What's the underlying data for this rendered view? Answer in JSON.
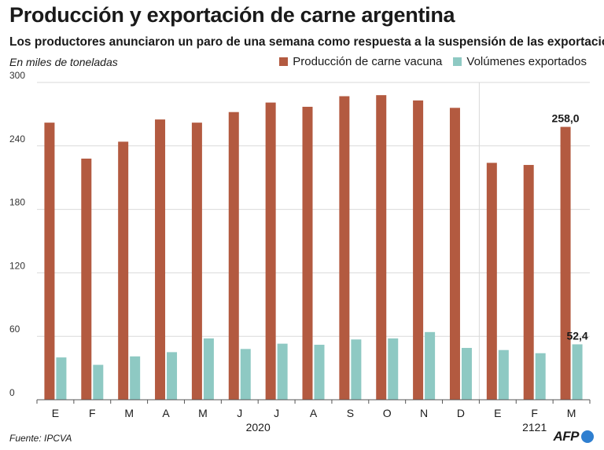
{
  "header": {
    "title": "Producción y exportación de carne argentina",
    "subtitle": "Los productores anunciaron un paro de una semana como respuesta a la suspensión de las exportaciones",
    "unit": "En miles de toneladas"
  },
  "footer": {
    "source": "Fuente: IPCVA",
    "logo_text": "AFP"
  },
  "colors": {
    "production": "#b35a40",
    "exports": "#8ec9c3",
    "grid": "#d9d9d9",
    "axis": "#555555",
    "logo_blue": "#2f7fd0"
  },
  "chart_data": {
    "type": "bar",
    "title": "Producción y exportación de carne argentina",
    "ylabel": "En miles de toneladas",
    "ylim": [
      0,
      300
    ],
    "yticks": [
      0,
      60,
      120,
      180,
      240,
      300
    ],
    "grid": true,
    "legend_position": "top-right",
    "categories": [
      "E",
      "F",
      "M",
      "A",
      "M",
      "J",
      "J",
      "A",
      "S",
      "O",
      "N",
      "D",
      "E",
      "F",
      "M"
    ],
    "groups": [
      {
        "label": "2020",
        "start": 0,
        "end": 11
      },
      {
        "label": "2121",
        "start": 12,
        "end": 14
      }
    ],
    "series": [
      {
        "name": "Producción de carne vacuna",
        "color_key": "production",
        "values": [
          262,
          228,
          244,
          265,
          262,
          272,
          281,
          277,
          287,
          288,
          283,
          276,
          224,
          222,
          258.0
        ]
      },
      {
        "name": "Volúmenes exportados",
        "color_key": "exports",
        "values": [
          40,
          33,
          41,
          45,
          58,
          48,
          53,
          52,
          57,
          58,
          64,
          49,
          47,
          44,
          52.4
        ]
      }
    ],
    "annotations": [
      {
        "series": 0,
        "index": 14,
        "text": "258,0"
      },
      {
        "series": 1,
        "index": 14,
        "text": "52,4"
      }
    ]
  }
}
